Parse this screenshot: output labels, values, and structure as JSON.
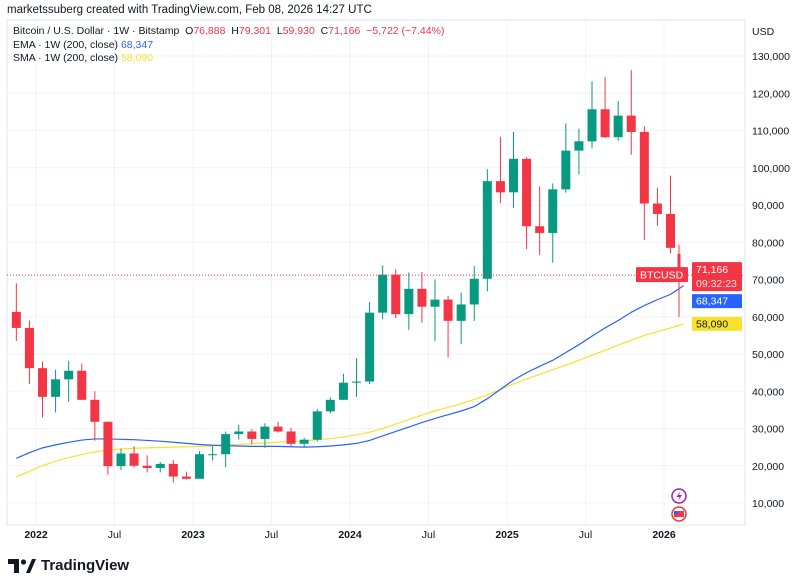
{
  "credit": "marketssuberg created with TradingView.com, Feb 08, 2026 14:27 UTC",
  "legend": {
    "symbol": "Bitcoin / U.S. Dollar · 1W · Bitstamp",
    "o_label": "O",
    "o": "76,888",
    "h_label": "H",
    "h": "79,301",
    "l_label": "L",
    "l": "59,930",
    "c_label": "C",
    "c": "71,166",
    "change": "−5,722 (−7.44%)",
    "ema_label": "EMA · 1W (200, close)",
    "ema_value": "68,347",
    "sma_label": "SMA · 1W (200, close)",
    "sma_value": "58,090"
  },
  "logo_text": "TradingView",
  "colors": {
    "up": "#089981",
    "down": "#f23645",
    "ema": "#2962ff",
    "sma": "#f7e22c",
    "grid": "#f0f3fa"
  },
  "chart_data": {
    "type": "candlestick",
    "currency": "USD",
    "symbol_tag": "BTCUSD",
    "last_price": "71,166",
    "countdown": "09:32:23",
    "ema_tag": "68,347",
    "sma_tag": "58,090",
    "ylim": [
      0,
      135000
    ],
    "y_ticks": [
      10000,
      20000,
      30000,
      40000,
      50000,
      60000,
      70000,
      80000,
      90000,
      100000,
      110000,
      120000,
      130000
    ],
    "y_tick_labels": [
      "10,000",
      "20,000",
      "30,000",
      "40,000",
      "50,000",
      "60,000",
      "70,000",
      "80,000",
      "90,000",
      "100,000",
      "110,000",
      "120,000",
      "130,000"
    ],
    "x_ticks": [
      {
        "date": "2022-01",
        "label": "2022"
      },
      {
        "date": "2022-07",
        "label": "Jul"
      },
      {
        "date": "2023-01",
        "label": "2023"
      },
      {
        "date": "2023-07",
        "label": "Jul"
      },
      {
        "date": "2024-01",
        "label": "2024"
      },
      {
        "date": "2024-07",
        "label": "Jul"
      },
      {
        "date": "2025-01",
        "label": "2025"
      },
      {
        "date": "2025-07",
        "label": "Jul"
      },
      {
        "date": "2026-01",
        "label": "2026"
      }
    ],
    "grid": true,
    "candles": [
      [
        "2021-11",
        61300,
        69000,
        53500,
        57000
      ],
      [
        "2021-12",
        57000,
        59000,
        42000,
        46200
      ],
      [
        "2022-01",
        46200,
        48000,
        33000,
        38500
      ],
      [
        "2022-02",
        38500,
        45800,
        34300,
        43200
      ],
      [
        "2022-03",
        43200,
        48200,
        37200,
        45500
      ],
      [
        "2022-04",
        45500,
        47400,
        37700,
        37700
      ],
      [
        "2022-05",
        37700,
        40000,
        26700,
        31800
      ],
      [
        "2022-06",
        31800,
        31900,
        17600,
        19900
      ],
      [
        "2022-07",
        19900,
        24600,
        18800,
        23300
      ],
      [
        "2022-08",
        23300,
        25200,
        19600,
        20000
      ],
      [
        "2022-09",
        20000,
        22800,
        18200,
        19400
      ],
      [
        "2022-10",
        19400,
        21000,
        18200,
        20500
      ],
      [
        "2022-11",
        20500,
        21500,
        15500,
        17100
      ],
      [
        "2022-12",
        17100,
        18400,
        16300,
        16500
      ],
      [
        "2023-01",
        16500,
        23900,
        16500,
        23100
      ],
      [
        "2023-02",
        23100,
        25200,
        21400,
        23100
      ],
      [
        "2023-03",
        23100,
        29200,
        19600,
        28500
      ],
      [
        "2023-04",
        28500,
        31000,
        27000,
        29200
      ],
      [
        "2023-05",
        29200,
        29800,
        25800,
        27200
      ],
      [
        "2023-06",
        27200,
        31400,
        24800,
        30500
      ],
      [
        "2023-07",
        30500,
        31800,
        28900,
        29200
      ],
      [
        "2023-08",
        29200,
        30200,
        25300,
        25900
      ],
      [
        "2023-09",
        25900,
        27500,
        24900,
        27000
      ],
      [
        "2023-10",
        27000,
        35200,
        26500,
        34600
      ],
      [
        "2023-11",
        34600,
        38400,
        34100,
        37700
      ],
      [
        "2023-12",
        37700,
        44700,
        37600,
        42300
      ],
      [
        "2024-01",
        42300,
        48900,
        38500,
        42600
      ],
      [
        "2024-02",
        42600,
        64000,
        41900,
        61100
      ],
      [
        "2024-03",
        61100,
        73800,
        59300,
        71300
      ],
      [
        "2024-04",
        71300,
        72700,
        59600,
        60700
      ],
      [
        "2024-05",
        60700,
        71900,
        56500,
        67500
      ],
      [
        "2024-06",
        67500,
        72000,
        58400,
        62700
      ],
      [
        "2024-07",
        62700,
        70000,
        53500,
        64600
      ],
      [
        "2024-08",
        64600,
        65600,
        49100,
        58900
      ],
      [
        "2024-09",
        58900,
        66500,
        52600,
        63300
      ],
      [
        "2024-10",
        63300,
        73600,
        58900,
        70200
      ],
      [
        "2024-11",
        70200,
        99600,
        66800,
        96400
      ],
      [
        "2024-12",
        96400,
        108300,
        90500,
        93400
      ],
      [
        "2025-01",
        93400,
        109600,
        89200,
        102400
      ],
      [
        "2025-02",
        102400,
        102800,
        78200,
        84300
      ],
      [
        "2025-03",
        84300,
        95000,
        76600,
        82500
      ],
      [
        "2025-04",
        82500,
        95800,
        74500,
        94200
      ],
      [
        "2025-05",
        94200,
        111900,
        93300,
        104600
      ],
      [
        "2025-06",
        104600,
        110500,
        98200,
        107100
      ],
      [
        "2025-07",
        107100,
        123200,
        105200,
        115700
      ],
      [
        "2025-08",
        115700,
        124400,
        108000,
        108200
      ],
      [
        "2025-09",
        108200,
        117900,
        107200,
        114000
      ],
      [
        "2025-10",
        114000,
        126200,
        103500,
        109600
      ],
      [
        "2025-11",
        109600,
        111200,
        80600,
        90400
      ],
      [
        "2025-12",
        90400,
        94600,
        84400,
        87600
      ],
      [
        "2026-01",
        87600,
        97900,
        77000,
        78500
      ],
      [
        "2026-02",
        76888,
        79301,
        59930,
        71166
      ]
    ],
    "series": [
      {
        "name": "EMA · 1W (200, close)",
        "values": [
          22000,
          23500,
          24800,
          25600,
          26300,
          26900,
          27200,
          27200,
          27100,
          27000,
          26800,
          26600,
          26300,
          26000,
          25700,
          25500,
          25400,
          25300,
          25200,
          25200,
          25200,
          25100,
          25000,
          25100,
          25300,
          25600,
          26000,
          26800,
          28000,
          29200,
          30400,
          31600,
          32700,
          33700,
          34700,
          35900,
          38000,
          40500,
          43000,
          45000,
          46700,
          48300,
          50400,
          52500,
          54800,
          57000,
          59000,
          61200,
          63000,
          64600,
          66000,
          68347
        ]
      },
      {
        "name": "SMA · 1W (200, close)",
        "values": [
          17000,
          18500,
          20000,
          21200,
          22200,
          23000,
          23700,
          24200,
          24500,
          24700,
          24800,
          24900,
          25000,
          25100,
          25200,
          25300,
          25500,
          25700,
          25900,
          26100,
          26300,
          26500,
          26700,
          27000,
          27300,
          27700,
          28300,
          29000,
          30000,
          31200,
          32400,
          33600,
          34700,
          35700,
          36700,
          37800,
          39000,
          40500,
          42000,
          43300,
          44500,
          45800,
          47000,
          48300,
          49700,
          51000,
          52400,
          53700,
          55000,
          56000,
          57000,
          58090
        ]
      }
    ]
  }
}
